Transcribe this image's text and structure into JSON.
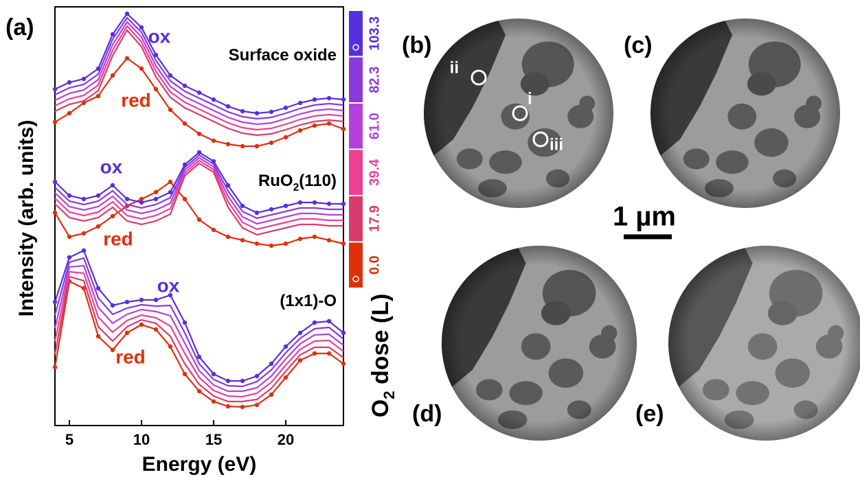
{
  "chart_data": {
    "type": "line",
    "title": "(a)",
    "xlabel": "Energy (eV)",
    "ylabel": "Intensity (arb. units)",
    "x": [
      4,
      5,
      6,
      7,
      8,
      9,
      10,
      11,
      12,
      13,
      14,
      15,
      16,
      17,
      18,
      19,
      20,
      21,
      22,
      23,
      24
    ],
    "xlim": [
      4,
      24
    ],
    "xticks": [
      5,
      10,
      15,
      20
    ],
    "ylim": [
      0,
      61
    ],
    "colorbar": {
      "label_parts": [
        "O",
        "2",
        " dose (L)"
      ],
      "ticks": [
        {
          "value": 0,
          "label": "0.0"
        },
        17.9,
        39.4,
        {
          "value": 61,
          "label": "61.0"
        },
        82.3,
        103.3
      ],
      "colors": [
        "#e0300a",
        "#d83c6c",
        "#ec3f96",
        "#b441dc",
        "#8a39dc",
        "#5530e0"
      ]
    },
    "groups": [
      {
        "label_parts": [
          "Surface oxide"
        ],
        "annotations": [
          "ox",
          "red"
        ],
        "series": [
          {
            "color": "#e0300a",
            "markers": true,
            "values": [
              44.2,
              45.5,
              47,
              48,
              51,
              53.5,
              52,
              49,
              46,
              44,
              42.5,
              41.5,
              41,
              40.7,
              40.7,
              41.2,
              42,
              43,
              43.7,
              44,
              43.2
            ]
          },
          {
            "color": "#d83c6c",
            "markers": false,
            "values": [
              45.8,
              46.8,
              47.3,
              48.8,
              53.9,
              57.6,
              55.2,
              50.8,
              47.8,
              46.3,
              45.3,
              44.3,
              43.3,
              42.6,
              42.3,
              42.5,
              43.1,
              43.8,
              44.3,
              44.5,
              44.3
            ]
          },
          {
            "color": "#ec3f96",
            "markers": false,
            "values": [
              46.6,
              47.6,
              48.1,
              49.6,
              54.7,
              58.2,
              55.9,
              51.6,
              48.6,
              47.1,
              46.1,
              45.1,
              44.1,
              43.4,
              43.1,
              43.3,
              43.9,
              44.6,
              45.1,
              45.3,
              45.1
            ]
          },
          {
            "color": "#b441dc",
            "markers": false,
            "values": [
              47.4,
              48.4,
              48.9,
              50.4,
              55.5,
              58.8,
              56.6,
              52.4,
              49.4,
              47.9,
              46.9,
              45.9,
              44.9,
              44.2,
              43.9,
              44.1,
              44.7,
              45.4,
              45.9,
              46.1,
              45.9
            ]
          },
          {
            "color": "#8a39dc",
            "markers": false,
            "values": [
              48.2,
              49.2,
              49.7,
              51.2,
              56.3,
              59.4,
              57.3,
              53.2,
              50.2,
              48.7,
              47.7,
              46.7,
              45.7,
              45,
              44.7,
              44.9,
              45.5,
              46.2,
              46.7,
              46.9,
              46.7
            ]
          },
          {
            "color": "#5530e0",
            "markers": true,
            "values": [
              49,
              50,
              50.5,
              52,
              57,
              60,
              58,
              54,
              51,
              49.5,
              48.5,
              47.5,
              46.5,
              45.8,
              45.5,
              45.7,
              46.3,
              47,
              47.5,
              47.7,
              47.5
            ]
          }
        ]
      },
      {
        "label_parts": [
          "RuO",
          "2",
          "(110)"
        ],
        "annotations": [
          "ox",
          "red"
        ],
        "series": [
          {
            "color": "#e0300a",
            "markers": true,
            "values": [
              31,
              27.5,
              28,
              29,
              30.5,
              32,
              33,
              34,
              35.5,
              33,
              30,
              28.5,
              27.5,
              27,
              26.5,
              26.2,
              26.5,
              27.2,
              27.5,
              27,
              26.5
            ]
          },
          {
            "color": "#d83c6c",
            "markers": false,
            "values": [
              32.3,
              30.3,
              29.8,
              30.3,
              31.8,
              29.8,
              29.3,
              29.8,
              30.8,
              36.4,
              38.2,
              36.9,
              31.8,
              28.8,
              27.8,
              28.3,
              28.8,
              29.3,
              29.3,
              29.1,
              29.1
            ]
          },
          {
            "color": "#ec3f96",
            "markers": false,
            "values": [
              33.1,
              31.1,
              30.6,
              31.1,
              32.6,
              30.6,
              30.1,
              30.6,
              31.6,
              36.8,
              38.6,
              37.3,
              32.6,
              29.6,
              28.6,
              29.1,
              29.6,
              30.1,
              30.1,
              29.9,
              29.9
            ]
          },
          {
            "color": "#b441dc",
            "markers": false,
            "values": [
              33.9,
              31.9,
              31.4,
              31.9,
              33.4,
              31.4,
              30.9,
              31.4,
              32.4,
              37.2,
              39,
              37.7,
              33.4,
              30.4,
              29.4,
              29.9,
              30.4,
              30.9,
              30.9,
              30.7,
              30.7
            ]
          },
          {
            "color": "#8a39dc",
            "markers": false,
            "values": [
              34.7,
              32.7,
              32.2,
              32.7,
              34.2,
              32.2,
              31.7,
              32.2,
              33.2,
              37.6,
              39.4,
              38.1,
              34.2,
              31.2,
              30.2,
              30.7,
              31.2,
              31.7,
              31.7,
              31.5,
              31.5
            ]
          },
          {
            "color": "#5530e0",
            "markers": true,
            "values": [
              35.5,
              33.5,
              33,
              33.5,
              35,
              33,
              32.5,
              33,
              34,
              38,
              39.8,
              38.5,
              35,
              32,
              31,
              31.5,
              32,
              32.5,
              32.5,
              32.3,
              32.3
            ]
          }
        ]
      },
      {
        "label_parts": [
          "(1x1)-O"
        ],
        "annotations": [
          "ox",
          "red"
        ],
        "series": [
          {
            "color": "#e0300a",
            "markers": true,
            "values": [
              8.5,
              21,
              20,
              13,
              11,
              13.5,
              14.7,
              14,
              11.5,
              7.5,
              5,
              3.5,
              2.8,
              2.7,
              3,
              4.5,
              7,
              9.5,
              10.5,
              10.5,
              9
            ]
          },
          {
            "color": "#d83c6c",
            "markers": false,
            "values": [
              10.4,
              21.7,
              21.1,
              14.4,
              12.3,
              14.4,
              15.4,
              14.9,
              13,
              9,
              6,
              4.3,
              3.5,
              3.5,
              3.8,
              5.4,
              7.9,
              10.3,
              11.4,
              11.4,
              9.9
            ]
          },
          {
            "color": "#ec3f96",
            "markers": false,
            "values": [
              12.3,
              22.4,
              22.2,
              15.8,
              13.6,
              15.3,
              16.1,
              15.7,
              14.5,
              10.5,
              7,
              5.1,
              4.3,
              4.2,
              4.7,
              6.3,
              8.8,
              11.1,
              12.3,
              12.4,
              10.8
            ]
          },
          {
            "color": "#b441dc",
            "markers": false,
            "values": [
              14.2,
              23.1,
              23.3,
              17.2,
              14.9,
              16.2,
              16.9,
              16.6,
              16,
              12,
              8,
              5.9,
              5,
              5,
              5.5,
              7.2,
              9.7,
              11.9,
              13.2,
              13.3,
              11.7
            ]
          },
          {
            "color": "#8a39dc",
            "markers": false,
            "values": [
              16.1,
              23.8,
              24.4,
              18.6,
              16.2,
              17.1,
              17.6,
              17.4,
              17.5,
              13.5,
              9,
              6.7,
              5.8,
              5.7,
              6.4,
              8.1,
              10.6,
              12.7,
              14.1,
              14.3,
              12.6
            ]
          },
          {
            "color": "#5530e0",
            "markers": true,
            "values": [
              18,
              24.5,
              25.5,
              20,
              17.5,
              18,
              18.3,
              18.3,
              19,
              15,
              10,
              7.5,
              6.5,
              6.5,
              7.2,
              9,
              11.5,
              13.5,
              15,
              15.2,
              13.5
            ]
          }
        ]
      }
    ]
  },
  "images": {
    "panels": [
      "(b)",
      "(c)",
      "(d)",
      "(e)"
    ],
    "spots": [
      "ii",
      "i",
      "iii"
    ],
    "scale_bar": "1 µm"
  }
}
